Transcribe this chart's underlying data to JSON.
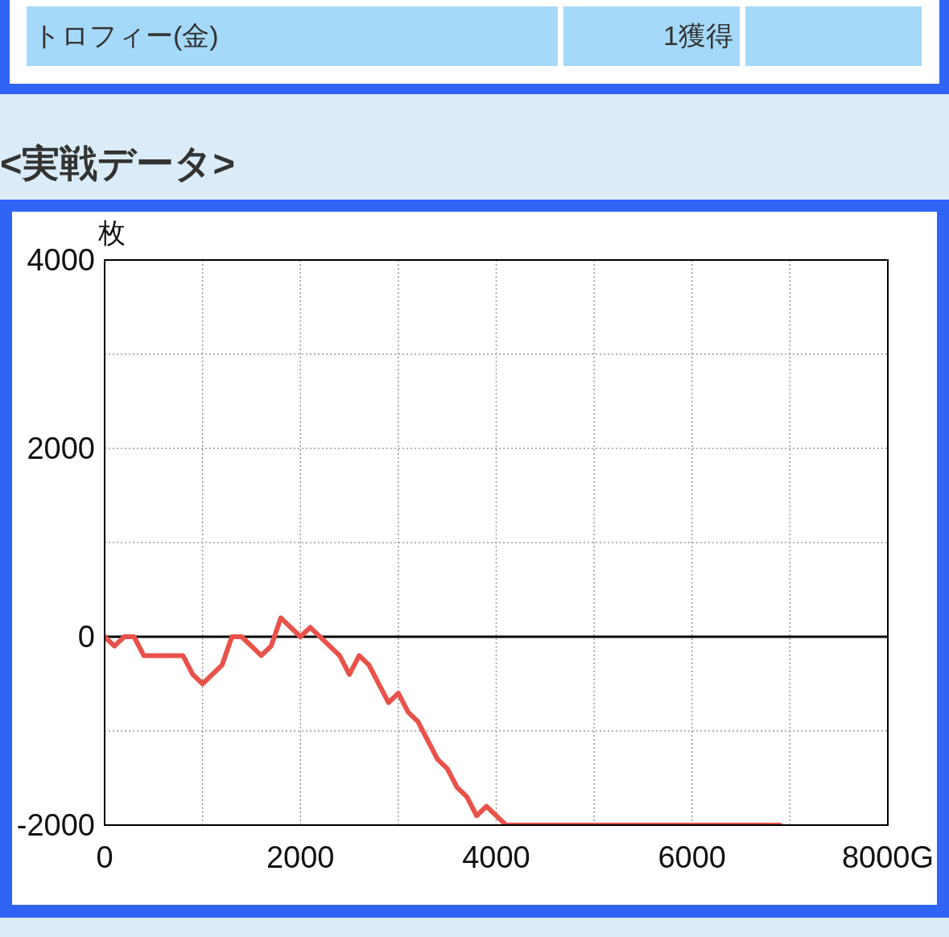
{
  "chart_data": {
    "type": "line",
    "title": "<実戦データ>",
    "ylabel": "枚",
    "annotations": [
      "トロフィー(金)",
      "1獲得"
    ],
    "x": [
      0,
      100,
      200,
      300,
      400,
      800,
      900,
      1000,
      1200,
      1300,
      1400,
      1600,
      1700,
      1800,
      2000,
      2100,
      2400,
      2500,
      2600,
      2700,
      2900,
      3000,
      3100,
      3200,
      3400,
      3500,
      3600,
      3700,
      3800,
      3900,
      4100,
      6900
    ],
    "values": [
      0,
      -100,
      0,
      0,
      -200,
      -200,
      -400,
      -500,
      -300,
      0,
      0,
      -200,
      -100,
      200,
      0,
      100,
      -200,
      -400,
      -200,
      -300,
      -700,
      -600,
      -800,
      -900,
      -1300,
      -1400,
      -1600,
      -1700,
      -1900,
      -1800,
      -2000,
      -2000
    ],
    "color": "#e8524a",
    "line_style": "solid",
    "xlim": [
      0,
      8000
    ],
    "xticks": [
      0,
      {
        "value": 1000,
        "label": null
      },
      2000,
      {
        "value": 3000,
        "label": null
      },
      4000,
      {
        "value": 5000,
        "label": null
      },
      6000,
      {
        "value": 7000,
        "label": null
      },
      {
        "value": 8000,
        "label": "8000G"
      }
    ],
    "ylim": [
      -2000,
      4000
    ],
    "yticks": [
      -2000,
      {
        "value": -1000,
        "label": null
      },
      0,
      {
        "value": 1000,
        "label": null
      },
      2000,
      {
        "value": 3000,
        "label": null
      },
      4000
    ],
    "grid": true,
    "ref_lines": [
      {
        "axis": "y",
        "value": 0,
        "color": "#000000",
        "line_style": "solid"
      }
    ]
  }
}
